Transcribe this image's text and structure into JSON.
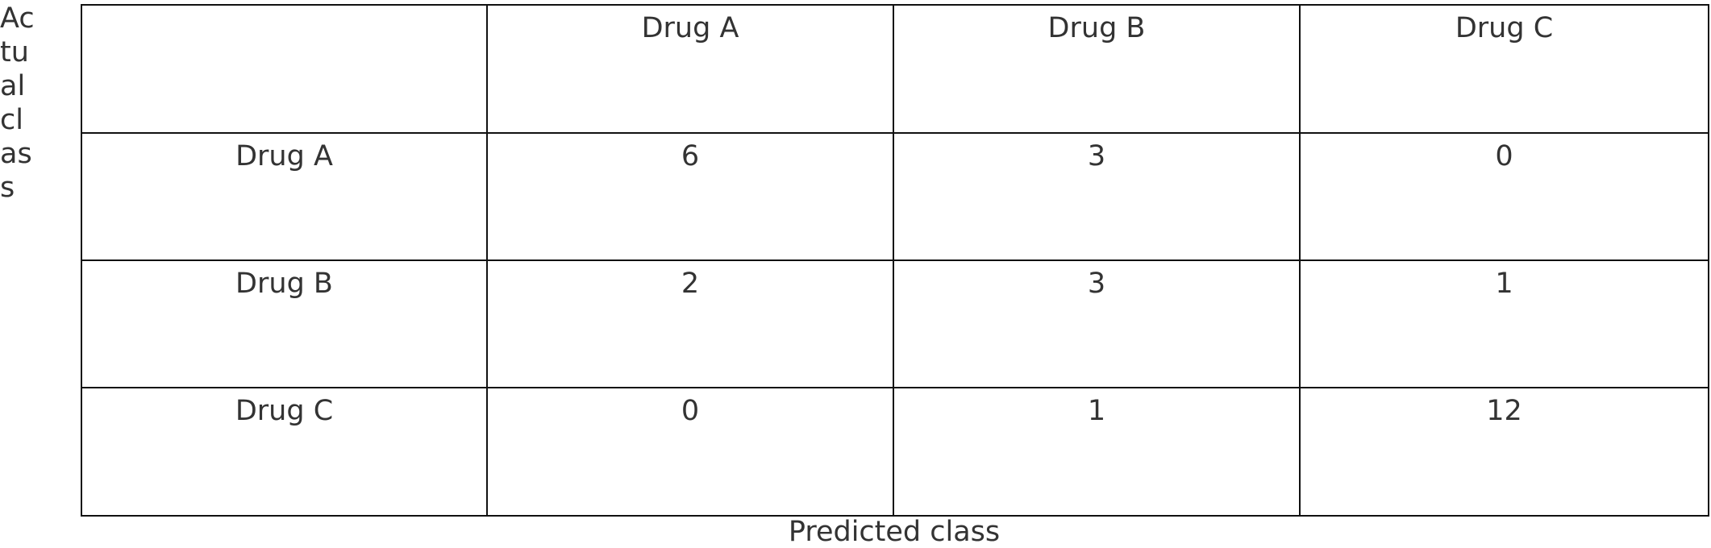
{
  "row_label": "Actual class",
  "column_label": "Predicted class",
  "table": {
    "header": [
      "Drug A",
      "Drug B",
      "Drug C"
    ],
    "rows": [
      {
        "label": "Drug A",
        "cells": [
          6,
          3,
          0
        ]
      },
      {
        "label": "Drug B",
        "cells": [
          2,
          3,
          1
        ]
      },
      {
        "label": "Drug C",
        "cells": [
          0,
          1,
          12
        ]
      }
    ]
  }
}
